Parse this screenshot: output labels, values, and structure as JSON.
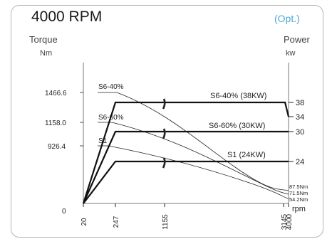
{
  "chart_data": {
    "type": "line",
    "title": "4000 RPM",
    "badge": "(Opt.)",
    "left_axis": {
      "label": "Torque",
      "unit": "Nm"
    },
    "right_axis": {
      "label": "Power",
      "unit": "kw"
    },
    "x_unit": "rpm",
    "x_ticks": [
      "20",
      "247",
      "1155",
      "3145",
      "4000"
    ],
    "x_tick_values": [
      20,
      247,
      1155,
      3145,
      4000
    ],
    "y_zero_label": "0",
    "torque_ticks": [
      "1466.6",
      "1158.0",
      "926.4"
    ],
    "power_ticks": [
      "38",
      "34",
      "30",
      "24"
    ],
    "power_series": [
      {
        "name": "S6-40% (38KW)",
        "points": [
          [
            20,
            0
          ],
          [
            247,
            38
          ],
          [
            3400,
            38
          ],
          [
            4000,
            34
          ]
        ]
      },
      {
        "name": "S6-60% (30KW)",
        "points": [
          [
            20,
            0
          ],
          [
            247,
            30
          ],
          [
            4000,
            30
          ]
        ]
      },
      {
        "name": "S1 (24KW)",
        "points": [
          [
            20,
            0
          ],
          [
            247,
            24
          ],
          [
            4000,
            24
          ]
        ]
      }
    ],
    "torque_series": [
      {
        "name": "S6-40%",
        "start_torque": 1466.6,
        "end_label": "87.5Nm"
      },
      {
        "name": "S6-60%",
        "start_torque": 1158.0,
        "end_label": "71.5Nm"
      },
      {
        "name": "S1",
        "start_torque": 926.4,
        "end_label": "54.2Nm"
      }
    ]
  }
}
